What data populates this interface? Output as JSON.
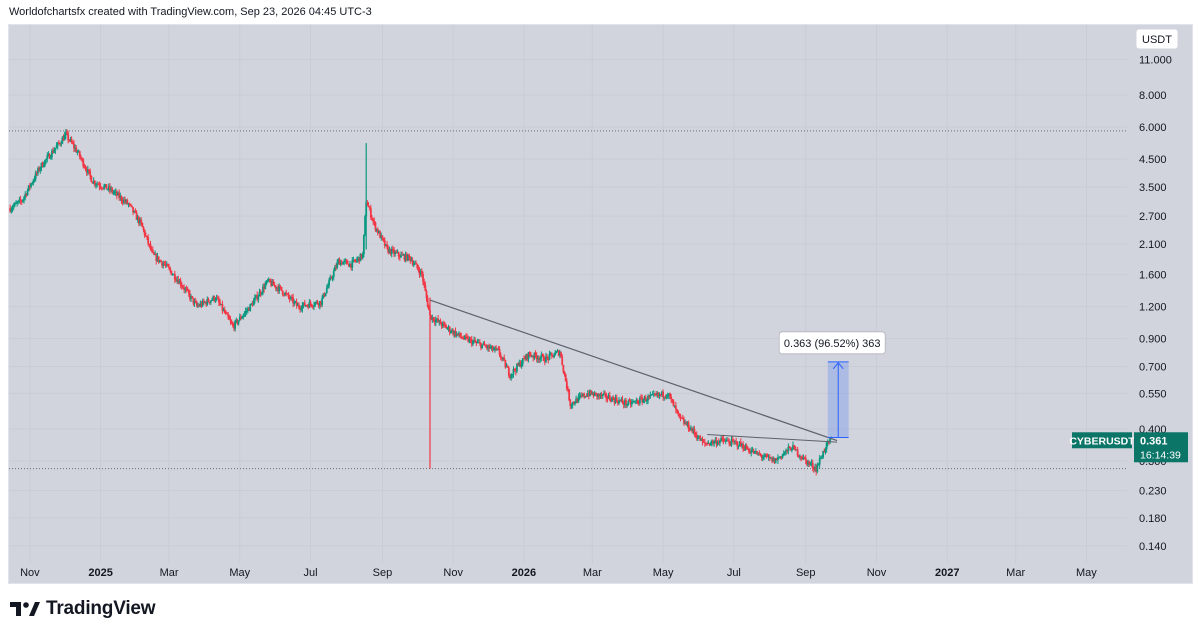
{
  "header": {
    "caption": "Worldofchartsfx created with TradingView.com, Sep 23, 2026 04:45 UTC-3"
  },
  "footer": {
    "brand": "TradingView"
  },
  "colors": {
    "background": "#d1d4dc",
    "up": "#089981",
    "down": "#f23645",
    "trendline": "#5d606b",
    "range": "#2962ff"
  },
  "chart_data": {
    "type": "candlestick",
    "symbol": "CYBERUSDT",
    "currency_label": "USDT",
    "last_price": "0.361",
    "countdown": "16:14:39",
    "y_scale": "log",
    "ylim": [
      0.12,
      15.0
    ],
    "y_ticks": [
      "11.000",
      "8.000",
      "6.000",
      "4.500",
      "3.500",
      "2.700",
      "2.100",
      "1.600",
      "1.200",
      "0.900",
      "0.700",
      "0.550",
      "0.400",
      "0.300",
      "0.230",
      "0.180",
      "0.140"
    ],
    "x_ticks": [
      {
        "label": "Nov",
        "date": "2024-11-01"
      },
      {
        "label": "2025",
        "date": "2025-01-01"
      },
      {
        "label": "Mar",
        "date": "2025-03-01"
      },
      {
        "label": "May",
        "date": "2025-05-01"
      },
      {
        "label": "Jul",
        "date": "2025-07-01"
      },
      {
        "label": "Sep",
        "date": "2025-09-01"
      },
      {
        "label": "Nov",
        "date": "2025-11-01"
      },
      {
        "label": "2026",
        "date": "2026-01-01"
      },
      {
        "label": "Mar",
        "date": "2026-03-01"
      },
      {
        "label": "May",
        "date": "2026-05-01"
      },
      {
        "label": "Jul",
        "date": "2026-07-01"
      },
      {
        "label": "Sep",
        "date": "2026-09-01"
      },
      {
        "label": "Nov",
        "date": "2026-11-01"
      },
      {
        "label": "2027",
        "date": "2027-01-01"
      },
      {
        "label": "Mar",
        "date": "2027-03-01"
      },
      {
        "label": "May",
        "date": "2027-05-01"
      }
    ],
    "xlim": [
      "2024-10-14",
      "2027-06-05"
    ],
    "price_path": [
      {
        "date": "2024-10-15",
        "price": 2.9
      },
      {
        "date": "2024-10-25",
        "price": 3.1
      },
      {
        "date": "2024-11-10",
        "price": 4.2
      },
      {
        "date": "2024-11-25",
        "price": 5.1
      },
      {
        "date": "2024-12-02",
        "price": 5.6
      },
      {
        "date": "2024-12-12",
        "price": 4.8
      },
      {
        "date": "2024-12-25",
        "price": 3.7
      },
      {
        "date": "2025-01-10",
        "price": 3.4
      },
      {
        "date": "2025-01-25",
        "price": 3.0
      },
      {
        "date": "2025-02-05",
        "price": 2.5
      },
      {
        "date": "2025-02-15",
        "price": 1.9
      },
      {
        "date": "2025-02-25",
        "price": 1.75
      },
      {
        "date": "2025-03-10",
        "price": 1.5
      },
      {
        "date": "2025-03-25",
        "price": 1.2
      },
      {
        "date": "2025-04-10",
        "price": 1.3
      },
      {
        "date": "2025-04-25",
        "price": 1.0
      },
      {
        "date": "2025-05-10",
        "price": 1.2
      },
      {
        "date": "2025-05-25",
        "price": 1.5
      },
      {
        "date": "2025-06-05",
        "price": 1.4
      },
      {
        "date": "2025-06-20",
        "price": 1.2
      },
      {
        "date": "2025-07-10",
        "price": 1.25
      },
      {
        "date": "2025-07-25",
        "price": 1.8
      },
      {
        "date": "2025-08-05",
        "price": 1.75
      },
      {
        "date": "2025-08-15",
        "price": 1.9
      },
      {
        "date": "2025-08-18",
        "price": 3.1
      },
      {
        "date": "2025-08-25",
        "price": 2.5
      },
      {
        "date": "2025-09-05",
        "price": 2.0
      },
      {
        "date": "2025-09-15",
        "price": 1.9
      },
      {
        "date": "2025-09-25",
        "price": 1.85
      },
      {
        "date": "2025-10-05",
        "price": 1.6
      },
      {
        "date": "2025-10-12",
        "price": 1.1
      },
      {
        "date": "2025-10-25",
        "price": 1.0
      },
      {
        "date": "2025-11-10",
        "price": 0.9
      },
      {
        "date": "2025-11-25",
        "price": 0.85
      },
      {
        "date": "2025-12-10",
        "price": 0.8
      },
      {
        "date": "2025-12-20",
        "price": 0.65
      },
      {
        "date": "2026-01-05",
        "price": 0.78
      },
      {
        "date": "2026-01-20",
        "price": 0.75
      },
      {
        "date": "2026-02-01",
        "price": 0.8
      },
      {
        "date": "2026-02-10",
        "price": 0.5
      },
      {
        "date": "2026-02-25",
        "price": 0.55
      },
      {
        "date": "2026-03-15",
        "price": 0.53
      },
      {
        "date": "2026-04-01",
        "price": 0.5
      },
      {
        "date": "2026-04-20",
        "price": 0.53
      },
      {
        "date": "2026-05-05",
        "price": 0.55
      },
      {
        "date": "2026-05-15",
        "price": 0.44
      },
      {
        "date": "2026-05-25",
        "price": 0.4
      },
      {
        "date": "2026-06-05",
        "price": 0.35
      },
      {
        "date": "2026-06-20",
        "price": 0.36
      },
      {
        "date": "2026-07-05",
        "price": 0.35
      },
      {
        "date": "2026-07-20",
        "price": 0.32
      },
      {
        "date": "2026-08-05",
        "price": 0.3
      },
      {
        "date": "2026-08-20",
        "price": 0.34
      },
      {
        "date": "2026-09-01",
        "price": 0.3
      },
      {
        "date": "2026-09-10",
        "price": 0.28
      },
      {
        "date": "2026-09-18",
        "price": 0.34
      },
      {
        "date": "2026-09-23",
        "price": 0.361
      }
    ],
    "big_wicks": [
      {
        "date": "2025-08-18",
        "low": 2.0,
        "high": 5.2
      },
      {
        "date": "2025-10-12",
        "low": 0.28,
        "high": 1.3
      }
    ],
    "horizontal_dotted_levels": [
      5.8,
      0.28
    ],
    "trendline": {
      "from": {
        "date": "2025-10-12",
        "price": 1.27
      },
      "to": {
        "date": "2026-09-28",
        "price": 0.36
      }
    },
    "support_line": {
      "from": {
        "date": "2026-06-08",
        "price": 0.38
      },
      "to": {
        "date": "2026-09-28",
        "price": 0.355
      }
    },
    "measure": {
      "from_date": "2026-09-20",
      "to_date": "2026-10-08",
      "low": 0.37,
      "high": 0.73,
      "label": "0.363 (96.52%) 363"
    }
  }
}
